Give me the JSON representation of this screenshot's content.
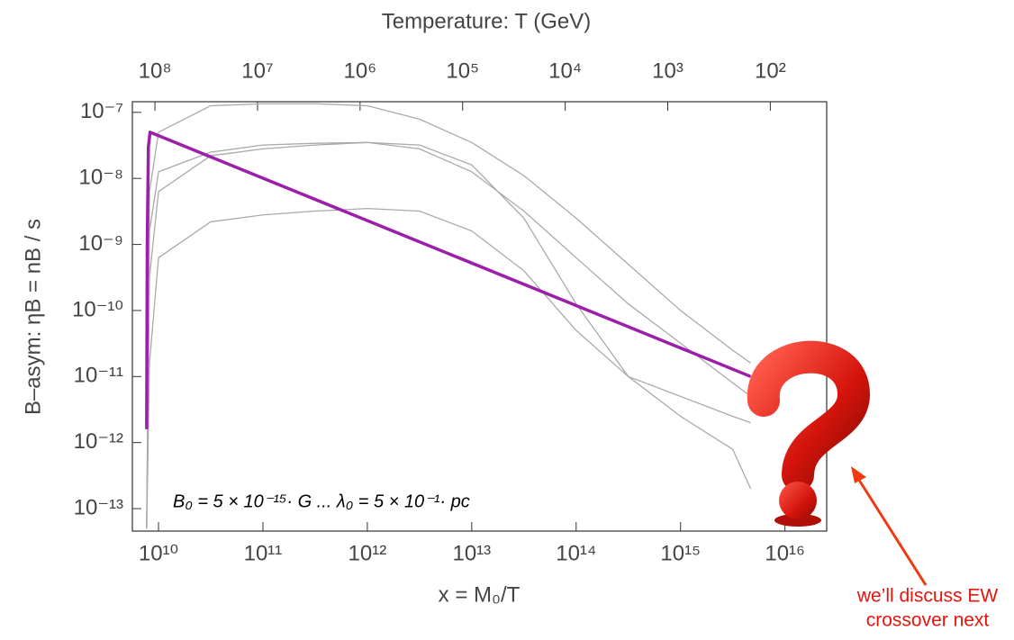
{
  "chart_data": {
    "type": "line",
    "title": "Temperature:  T (GeV)",
    "xlabel": "x = M₀/T",
    "ylabel": "B–asym:  ηB = nB / s",
    "annotation": "B₀ = 5 × 10⁻¹⁵· G ... λ₀ = 5 × 10⁻¹· pc",
    "callout": [
      "we’ll discuss EW",
      "crossover next"
    ],
    "callout_color": "#e8140c",
    "xscale": "log",
    "yscale": "log",
    "xlim": [
      5620000000.0,
      2.51e+16
    ],
    "ylim": [
      4.57e-14,
      1.45e-07
    ],
    "x2lim": [
      166000000.0,
      28.2
    ],
    "xticks": [
      {
        "value": 10000000000.0,
        "label": "10¹⁰"
      },
      {
        "value": 100000000000.0,
        "label": "10¹¹"
      },
      {
        "value": 1000000000000.0,
        "label": "10¹²"
      },
      {
        "value": 10000000000000.0,
        "label": "10¹³"
      },
      {
        "value": 100000000000000.0,
        "label": "10¹⁴"
      },
      {
        "value": 1000000000000000.0,
        "label": "10¹⁵"
      },
      {
        "value": 1e+16,
        "label": "10¹⁶"
      }
    ],
    "x2ticks": [
      {
        "value": 100000000.0,
        "label": "10⁸"
      },
      {
        "value": 10000000.0,
        "label": "10⁷"
      },
      {
        "value": 1000000.0,
        "label": "10⁶"
      },
      {
        "value": 100000.0,
        "label": "10⁵"
      },
      {
        "value": 10000.0,
        "label": "10⁴"
      },
      {
        "value": 1000.0,
        "label": "10³"
      },
      {
        "value": 100.0,
        "label": "10²"
      }
    ],
    "yticks": [
      {
        "value": 1e-07,
        "label": "10⁻⁷"
      },
      {
        "value": 1e-08,
        "label": "10⁻⁸"
      },
      {
        "value": 1e-09,
        "label": "10⁻⁹"
      },
      {
        "value": 1e-10,
        "label": "10⁻¹⁰"
      },
      {
        "value": 1e-11,
        "label": "10⁻¹¹"
      },
      {
        "value": 1e-12,
        "label": "10⁻¹²"
      },
      {
        "value": 1e-13,
        "label": "10⁻¹³"
      }
    ],
    "series": [
      {
        "color": "#aaaaaa",
        "width": 1.3,
        "x": [
          7700000000.0,
          8200000000.0,
          10000000000.0,
          31600000000.0,
          100000000000.0,
          316000000000.0,
          1000000000000.0,
          3160000000000.0,
          10000000000000.0,
          31600000000000.0,
          100000000000000.0,
          316000000000000.0,
          1000000000000000.0,
          3160000000000000.0,
          4700000000000000.0
        ],
        "values": [
          5e-14,
          6.3e-09,
          5e-08,
          1.26e-07,
          1.35e-07,
          1.35e-07,
          1.26e-07,
          7.9e-08,
          3.5e-08,
          1.1e-08,
          2.5e-09,
          5e-10,
          1e-10,
          2.5e-11,
          1.6e-11
        ]
      },
      {
        "color": "#aaaaaa",
        "width": 1.3,
        "x": [
          7700000000.0,
          8200000000.0,
          10000000000.0,
          31600000000.0,
          100000000000.0,
          316000000000.0,
          1000000000000.0,
          3160000000000.0,
          10000000000000.0,
          31600000000000.0,
          100000000000000.0,
          316000000000000.0,
          1000000000000000.0,
          3160000000000000.0,
          4700000000000000.0
        ],
        "values": [
          5e-14,
          3.2e-10,
          6.3e-09,
          2.2e-08,
          2.8e-08,
          3.2e-08,
          3.5e-08,
          3.2e-08,
          1.6e-08,
          2.5e-09,
          1.26e-10,
          1e-11,
          2.5e-12,
          7.9e-13,
          2e-13
        ]
      },
      {
        "color": "#aaaaaa",
        "width": 1.3,
        "x": [
          7700000000.0,
          8200000000.0,
          10000000000.0,
          31600000000.0,
          100000000000.0,
          316000000000.0,
          1000000000000.0,
          3160000000000.0,
          10000000000000.0,
          31600000000000.0,
          100000000000000.0,
          316000000000000.0,
          1000000000000000.0,
          3160000000000000.0,
          4700000000000000.0
        ],
        "values": [
          5e-14,
          1.6e-11,
          6.3e-10,
          2.2e-09,
          2.8e-09,
          3.2e-09,
          3.5e-09,
          3.2e-09,
          1.6e-09,
          4e-10,
          5e-11,
          1e-11,
          5e-12,
          2.5e-12,
          2e-12
        ]
      },
      {
        "color": "#aaaaaa",
        "width": 1.3,
        "x": [
          7700000000.0,
          8200000000.0,
          10000000000.0,
          31600000000.0,
          100000000000.0,
          316000000000.0,
          1000000000000.0,
          3160000000000.0,
          10000000000000.0,
          31600000000000.0,
          100000000000000.0,
          316000000000000.0,
          1000000000000000.0,
          3160000000000000.0,
          4700000000000000.0
        ],
        "values": [
          5e-14,
          1.6e-09,
          1.26e-08,
          2.5e-08,
          3.2e-08,
          3.4e-08,
          3.5e-08,
          2.8e-08,
          1.26e-08,
          3.2e-09,
          6.3e-10,
          1.26e-10,
          3.2e-11,
          8e-12,
          5e-12
        ]
      },
      {
        "color": "#9b1fa8",
        "width": 3.5,
        "x": [
          7700000000.0,
          7800000000.0,
          8000000000.0,
          8300000000.0,
          4700000000000000.0
        ],
        "values": [
          1.6e-12,
          1e-09,
          3e-08,
          5e-08,
          1e-11
        ]
      }
    ]
  }
}
